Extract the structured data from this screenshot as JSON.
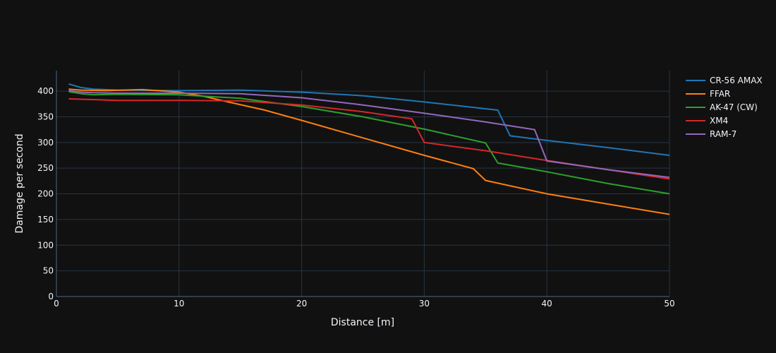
{
  "chart_data": {
    "type": "line",
    "title": "",
    "xlabel": "Distance [m]",
    "ylabel": "Damage per second",
    "xlim": [
      0,
      50
    ],
    "ylim": [
      0,
      440
    ],
    "xticks": [
      0,
      10,
      20,
      30,
      40,
      50
    ],
    "yticks": [
      0,
      50,
      100,
      150,
      200,
      250,
      300,
      350,
      400
    ],
    "grid": true,
    "legend": "top-right",
    "colors": {
      "background": "#111111",
      "grid": "#283442",
      "text": "#f2f5fa"
    },
    "series": [
      {
        "name": "CR-56 AMAX",
        "color": "#1f77b4",
        "points": [
          [
            1,
            414
          ],
          [
            2,
            407
          ],
          [
            3,
            404
          ],
          [
            5,
            402
          ],
          [
            10,
            401
          ],
          [
            15,
            402
          ],
          [
            20,
            398
          ],
          [
            25,
            391
          ],
          [
            30,
            379
          ],
          [
            36,
            363
          ],
          [
            37,
            313
          ],
          [
            40,
            304
          ],
          [
            45,
            290
          ],
          [
            50,
            275
          ]
        ]
      },
      {
        "name": "FFAR",
        "color": "#ff7f0e",
        "points": [
          [
            1,
            404
          ],
          [
            2,
            402
          ],
          [
            4,
            401
          ],
          [
            7,
            403
          ],
          [
            10,
            398
          ],
          [
            12,
            390
          ],
          [
            14,
            379
          ],
          [
            17,
            363
          ],
          [
            20,
            343
          ],
          [
            25,
            309
          ],
          [
            30,
            275
          ],
          [
            34,
            249
          ],
          [
            35,
            226
          ],
          [
            40,
            200
          ],
          [
            45,
            180
          ],
          [
            50,
            160
          ]
        ]
      },
      {
        "name": "AK-47 (CW)",
        "color": "#2ca02c",
        "points": [
          [
            1,
            399
          ],
          [
            2,
            395
          ],
          [
            3,
            393
          ],
          [
            5,
            394
          ],
          [
            10,
            393
          ],
          [
            15,
            386
          ],
          [
            20,
            370
          ],
          [
            25,
            350
          ],
          [
            30,
            326
          ],
          [
            35,
            299
          ],
          [
            36,
            260
          ],
          [
            40,
            243
          ],
          [
            45,
            220
          ],
          [
            50,
            200
          ]
        ]
      },
      {
        "name": "XM4",
        "color": "#d62728",
        "points": [
          [
            1,
            385
          ],
          [
            5,
            382
          ],
          [
            10,
            382
          ],
          [
            15,
            381
          ],
          [
            20,
            373
          ],
          [
            25,
            360
          ],
          [
            29,
            346
          ],
          [
            30,
            300
          ],
          [
            35,
            284
          ],
          [
            40,
            265
          ],
          [
            45,
            247
          ],
          [
            50,
            229
          ]
        ]
      },
      {
        "name": "RAM-7",
        "color": "#9467bd",
        "points": [
          [
            1,
            401
          ],
          [
            2,
            398
          ],
          [
            3,
            397
          ],
          [
            5,
            396
          ],
          [
            10,
            396
          ],
          [
            15,
            395
          ],
          [
            20,
            387
          ],
          [
            25,
            373
          ],
          [
            30,
            357
          ],
          [
            35,
            340
          ],
          [
            39,
            325
          ],
          [
            40,
            264
          ],
          [
            45,
            247
          ],
          [
            50,
            232
          ]
        ]
      }
    ]
  }
}
